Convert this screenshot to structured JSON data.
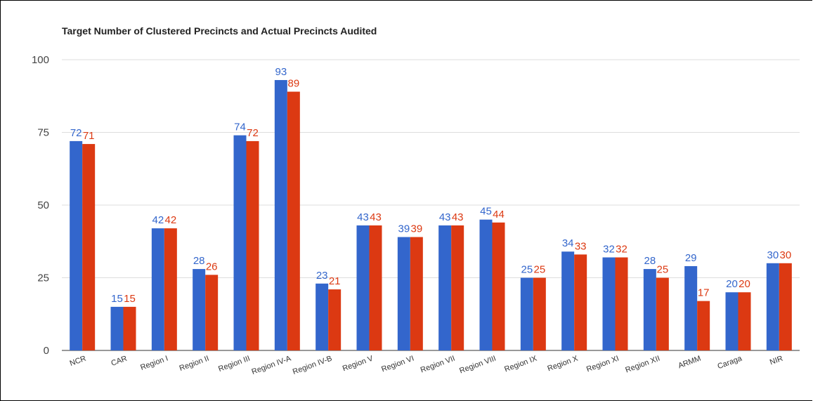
{
  "chart_data": {
    "type": "bar",
    "title": "Target Number of Clustered Precincts and Actual Precincts Audited",
    "xlabel": "",
    "ylabel": "",
    "ylim": [
      0,
      100
    ],
    "yticks": [
      0,
      25,
      50,
      75,
      100
    ],
    "grid": true,
    "legend": "none",
    "categories": [
      "NCR",
      "CAR",
      "Region I",
      "Region II",
      "Region III",
      "Region IV-A",
      "Region IV-B",
      "Region V",
      "Region VI",
      "Region VII",
      "Region VIII",
      "Region IX",
      "Region X",
      "Region XI",
      "Region XII",
      "ARMM",
      "Caraga",
      "NIR"
    ],
    "series": [
      {
        "color": "#3366cc",
        "values": [
          72,
          15,
          42,
          28,
          74,
          93,
          23,
          43,
          39,
          43,
          45,
          25,
          34,
          32,
          28,
          29,
          20,
          30
        ]
      },
      {
        "color": "#dc3912",
        "values": [
          71,
          15,
          42,
          26,
          72,
          89,
          21,
          43,
          39,
          43,
          44,
          25,
          33,
          32,
          25,
          17,
          20,
          30
        ]
      }
    ]
  }
}
